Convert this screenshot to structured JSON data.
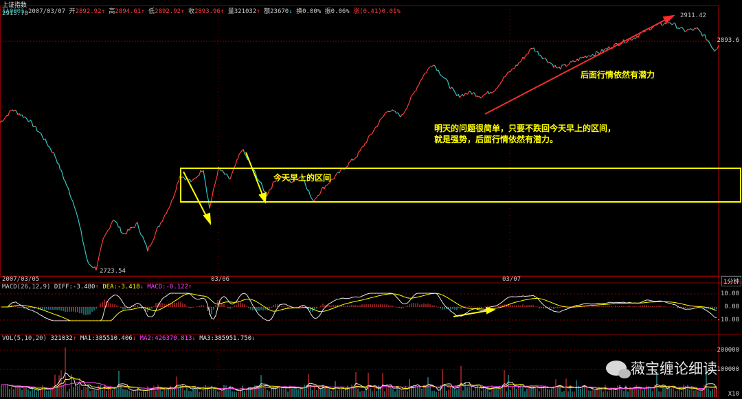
{
  "header": {
    "title": "上证指数",
    "code": "1A0001",
    "date": "2007/03/07",
    "open_label": "开",
    "open": "2892.92",
    "high_label": "高",
    "high": "2894.61",
    "low_label": "低",
    "low": "2892.92",
    "close_label": "收",
    "close": "2893.96",
    "vol_label": "量",
    "vol": "321032",
    "amt_label": "额",
    "amt": "23670",
    "turnover_label": "换",
    "turnover": "0.00%",
    "amp_label": "振",
    "amp": "0.06%",
    "chg_label": "涨",
    "chg": "(0.41)0.01%",
    "corner_value": "2915.70"
  },
  "price_panel": {
    "peak_label": "2911.42",
    "low_label": "2723.54",
    "right_price": "2893.6"
  },
  "xaxis": {
    "d1": "2007/03/05",
    "d2": "03/06",
    "d3": "03/07",
    "period": "1分钟"
  },
  "macd": {
    "label": "MACD(26,12,9)",
    "diff_label": "DIFF:",
    "diff": "-3.480",
    "dea_label": "DEA:",
    "dea": "-3.418",
    "macd_label": "MACD:",
    "macd": "-0.122",
    "ticks": [
      "10.00",
      "0.00",
      "-10.00"
    ]
  },
  "vol": {
    "label": "VOL(5,10,20)",
    "value": "321032",
    "ma1_label": "MA1:",
    "ma1": "385510.406",
    "ma2_label": "MA2:",
    "ma2": "426370.813",
    "ma3_label": "MA3:",
    "ma3": "385951.750",
    "ticks": [
      "200000",
      "100000",
      "X10"
    ]
  },
  "annotations": {
    "range_box": "今天早上的区间",
    "comment_line1": "明天的问题很简单，只要不跌回今天早上的区间，",
    "comment_line2": "就是强势，后面行情依然有潜力。",
    "upper_note": "后面行情依然有潜力"
  },
  "watermark": "薇宝缠论细读",
  "colors": {
    "up": "#ff3c3c",
    "down": "#33c6c6",
    "yellow": "#ffff00",
    "magenta": "#ff44ff",
    "grid": "#8b0000"
  },
  "chart_data": {
    "type": "line",
    "title": "上证指数",
    "x_dates": [
      "2007/03/05",
      "03/06",
      "03/07"
    ],
    "ylim": [
      2723.54,
      2915.7
    ],
    "points": [
      [
        0,
        2835
      ],
      [
        18,
        2845
      ],
      [
        40,
        2838
      ],
      [
        60,
        2826
      ],
      [
        80,
        2810
      ],
      [
        95,
        2790
      ],
      [
        110,
        2770
      ],
      [
        128,
        2728
      ],
      [
        140,
        2724
      ],
      [
        150,
        2745
      ],
      [
        165,
        2762
      ],
      [
        180,
        2750
      ],
      [
        200,
        2758
      ],
      [
        215,
        2738
      ],
      [
        230,
        2755
      ],
      [
        250,
        2775
      ],
      [
        262,
        2795
      ],
      [
        280,
        2790
      ],
      [
        296,
        2800
      ],
      [
        305,
        2770
      ],
      [
        318,
        2800
      ],
      [
        335,
        2792
      ],
      [
        352,
        2815
      ],
      [
        368,
        2800
      ],
      [
        388,
        2780
      ],
      [
        405,
        2795
      ],
      [
        425,
        2790
      ],
      [
        440,
        2795
      ],
      [
        455,
        2775
      ],
      [
        470,
        2785
      ],
      [
        490,
        2795
      ],
      [
        520,
        2810
      ],
      [
        545,
        2830
      ],
      [
        565,
        2845
      ],
      [
        585,
        2840
      ],
      [
        600,
        2855
      ],
      [
        615,
        2870
      ],
      [
        630,
        2880
      ],
      [
        648,
        2868
      ],
      [
        665,
        2855
      ],
      [
        685,
        2858
      ],
      [
        700,
        2855
      ],
      [
        720,
        2860
      ],
      [
        735,
        2870
      ],
      [
        755,
        2880
      ],
      [
        775,
        2892
      ],
      [
        790,
        2885
      ],
      [
        812,
        2876
      ],
      [
        830,
        2880
      ],
      [
        850,
        2885
      ],
      [
        870,
        2888
      ],
      [
        900,
        2895
      ],
      [
        925,
        2900
      ],
      [
        950,
        2908
      ],
      [
        975,
        2911.42
      ],
      [
        995,
        2905
      ],
      [
        1015,
        2906
      ],
      [
        1030,
        2898
      ],
      [
        1040,
        2890
      ],
      [
        1046,
        2893.6
      ]
    ],
    "range_box_price": [
      2785,
      2810
    ],
    "macd_ticks": [
      10.0,
      0.0,
      -10.0
    ],
    "macd": {
      "diff": -3.48,
      "dea": -3.418,
      "macd": -0.122
    },
    "vol_ticks": [
      200000,
      100000
    ],
    "vol_ma": {
      "ma1": 385510.406,
      "ma2": 426370.813,
      "ma3": 385951.75
    }
  }
}
